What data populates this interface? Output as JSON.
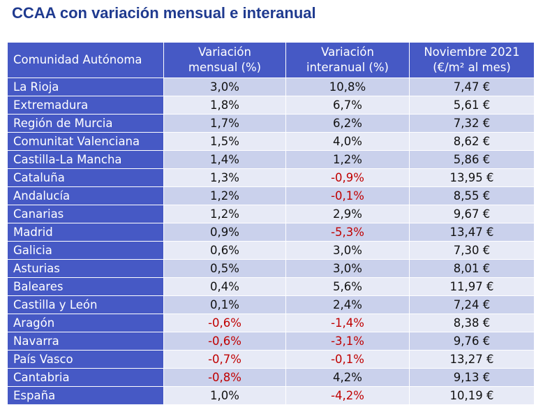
{
  "title": "CCAA con variación mensual e interanual",
  "colors": {
    "title": "#1f3a8f",
    "header_bg": "#4659c5",
    "row_odd": "#cad1ec",
    "row_even": "#e7eaf6",
    "negative": "#c00000"
  },
  "table": {
    "headers": {
      "region": "Comunidad Autónoma",
      "monthly_line1": "Variación",
      "monthly_line2": "mensual (%)",
      "annual_line1": "Variación",
      "annual_line2": "interanual (%)",
      "price_line1": "Noviembre 2021",
      "price_line2": "(€/m² al mes)"
    },
    "rows": [
      {
        "region": "La Rioja",
        "monthly": "3,0%",
        "annual": "10,8%",
        "price": "7,47 €"
      },
      {
        "region": "Extremadura",
        "monthly": "1,8%",
        "annual": "6,7%",
        "price": "5,61 €"
      },
      {
        "region": "Región de Murcia",
        "monthly": "1,7%",
        "annual": "6,2%",
        "price": "7,32 €"
      },
      {
        "region": "Comunitat Valenciana",
        "monthly": "1,5%",
        "annual": "4,0%",
        "price": "8,62 €"
      },
      {
        "region": "Castilla-La Mancha",
        "monthly": "1,4%",
        "annual": "1,2%",
        "price": "5,86 €"
      },
      {
        "region": "Cataluña",
        "monthly": "1,3%",
        "annual": "-0,9%",
        "price": "13,95 €"
      },
      {
        "region": "Andalucía",
        "monthly": "1,2%",
        "annual": "-0,1%",
        "price": "8,55 €"
      },
      {
        "region": "Canarias",
        "monthly": "1,2%",
        "annual": "2,9%",
        "price": "9,67 €"
      },
      {
        "region": "Madrid",
        "monthly": "0,9%",
        "annual": "-5,3%",
        "price": "13,47 €"
      },
      {
        "region": "Galicia",
        "monthly": "0,6%",
        "annual": "3,0%",
        "price": "7,30 €"
      },
      {
        "region": "Asturias",
        "monthly": "0,5%",
        "annual": "3,0%",
        "price": "8,01 €"
      },
      {
        "region": "Baleares",
        "monthly": "0,4%",
        "annual": "5,6%",
        "price": "11,97 €"
      },
      {
        "region": "Castilla y León",
        "monthly": "0,1%",
        "annual": "2,4%",
        "price": "7,24 €"
      },
      {
        "region": "Aragón",
        "monthly": "-0,6%",
        "annual": "-1,4%",
        "price": "8,38 €"
      },
      {
        "region": "Navarra",
        "monthly": "-0,6%",
        "annual": "-3,1%",
        "price": "9,76 €"
      },
      {
        "region": "País Vasco",
        "monthly": "-0,7%",
        "annual": "-0,1%",
        "price": "13,27 €"
      },
      {
        "region": "Cantabria",
        "monthly": "-0,8%",
        "annual": "4,2%",
        "price": "9,13 €"
      },
      {
        "region": "España",
        "monthly": "1,0%",
        "annual": "-4,2%",
        "price": "10,19 €"
      }
    ]
  }
}
